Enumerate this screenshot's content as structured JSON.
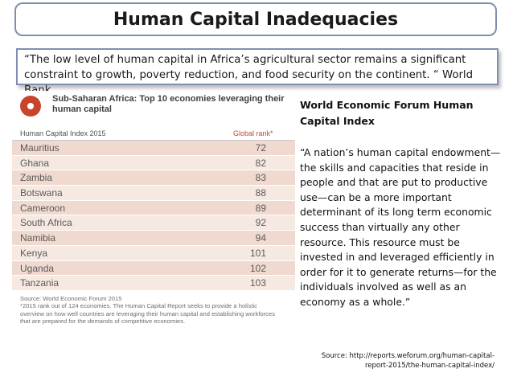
{
  "title": "Human Capital Inadequacies",
  "quote": "“The low level of human capital in Africa’s agricultural sector remains a significant constraint to growth, poverty reduction, and food security on the continent. “ World Bank",
  "table": {
    "title": "Sub-Saharan Africa: Top 10 economies leveraging their human capital",
    "col_country": "Human Capital Index 2015",
    "col_rank": "Global rank*",
    "rows": [
      {
        "country": "Mauritius",
        "rank": "72"
      },
      {
        "country": "Ghana",
        "rank": "82"
      },
      {
        "country": "Zambia",
        "rank": "83"
      },
      {
        "country": "Botswana",
        "rank": "88"
      },
      {
        "country": "Cameroon",
        "rank": "89"
      },
      {
        "country": "South Africa",
        "rank": "92"
      },
      {
        "country": "Namibia",
        "rank": "94"
      },
      {
        "country": "Kenya",
        "rank": "101"
      },
      {
        "country": "Uganda",
        "rank": "102"
      },
      {
        "country": "Tanzania",
        "rank": "103"
      }
    ],
    "footnote_1": "Source: World Economic Forum 2015",
    "footnote_2": "*2015 rank out of 124 economies. The Human Capital Report seeks to provide a holistic overview on how well countries are leveraging their human capital and establishing workforces that are prepared for the demands of competitive economies."
  },
  "wef": {
    "title": "World Economic Forum Human Capital Index",
    "quote": "“A nation’s human capital endowment—the skills and capacities that reside in people and that are put to productive use—can be a more important determinant of its long term economic success than virtually any other resource. This resource must be invested in and leveraged efficiently in order for it to generate returns—for the individuals involved as well as an economy as a whole.”",
    "source": "Source: http://reports.weforum.org/human-capital-report-2015/the-human-capital-index/"
  }
}
